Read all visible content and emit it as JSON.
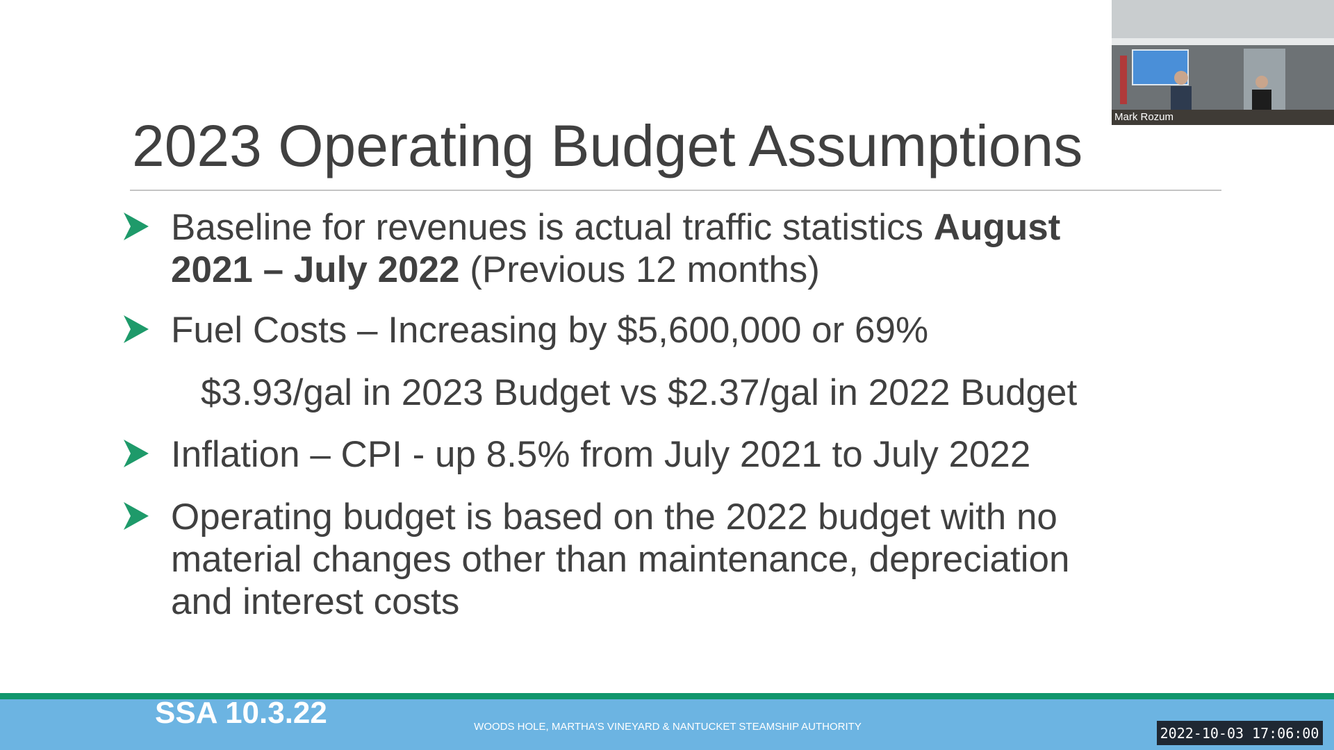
{
  "slide": {
    "title": "2023 Operating Budget Assumptions",
    "items": [
      {
        "type": "bullet",
        "lines": [
          [
            {
              "text": "Baseline for revenues is actual traffic statistics ",
              "bold": false
            },
            {
              "text": "August",
              "bold": true
            }
          ],
          [
            {
              "text": "2021 – July 2022",
              "bold": true
            },
            {
              "text": " (Previous 12 months)",
              "bold": false
            }
          ]
        ]
      },
      {
        "type": "bullet",
        "lines": [
          [
            {
              "text": "Fuel Costs – Increasing by $5,600,000 or 69%",
              "bold": false
            }
          ]
        ]
      },
      {
        "type": "sub",
        "lines": [
          [
            {
              "text": "$3.93/gal in 2023 Budget vs $2.37/gal in 2022 Budget",
              "bold": false
            }
          ]
        ]
      },
      {
        "type": "bullet",
        "lines": [
          [
            {
              "text": "Inflation – CPI - up 8.5% from July 2021 to July 2022",
              "bold": false
            }
          ]
        ]
      },
      {
        "type": "bullet",
        "lines": [
          [
            {
              "text": "Operating budget is based on the 2022 budget with no",
              "bold": false
            }
          ],
          [
            {
              "text": "material changes other than maintenance, depreciation",
              "bold": false
            }
          ],
          [
            {
              "text": "and interest costs",
              "bold": false
            }
          ]
        ]
      }
    ],
    "footer_left": "SSA 10.3.22",
    "footer_center": "WOODS HOLE, MARTHA'S VINEYARD & NANTUCKET STEAMSHIP AUTHORITY"
  },
  "video": {
    "participant": "Mark Rozum"
  },
  "timestamp": "2022-10-03 17:06:00"
}
